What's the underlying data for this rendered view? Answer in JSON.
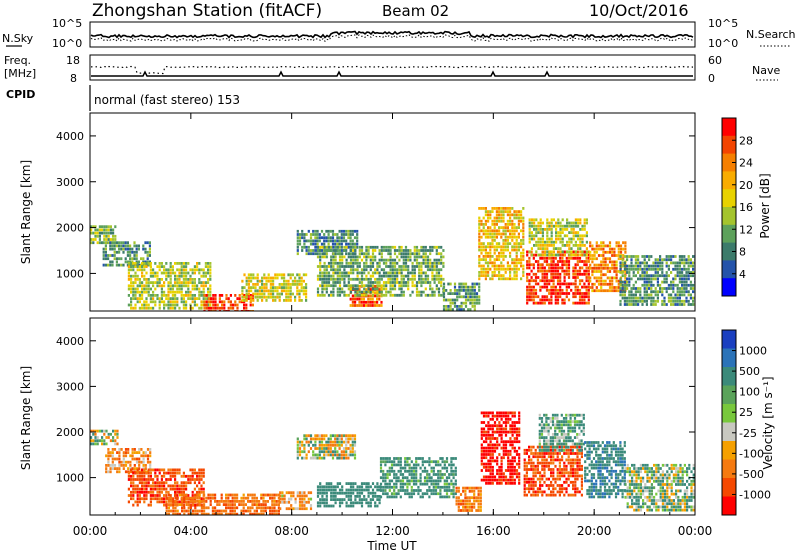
{
  "header": {
    "title": "Zhongshan Station (fitACF)",
    "beam": "Beam 02",
    "date": "10/Oct/2016"
  },
  "noise_panel": {
    "left_label": "N.Sky",
    "left_ticks": [
      "10^5",
      "10^0"
    ],
    "right_label": "N.Search",
    "right_ticks": [
      "10^5",
      "10^0"
    ]
  },
  "freq_panel": {
    "left_label_top": "Freq.",
    "left_label_unit": "[MHz]",
    "left_ticks": [
      "18",
      "8"
    ],
    "right_ticks": [
      "60",
      "0"
    ],
    "right_label": "Nave"
  },
  "cpid": {
    "label": "CPID",
    "text": "normal (fast stereo) 153"
  },
  "chart_data": [
    {
      "type": "heatmap",
      "name": "power",
      "ylabel": "Slant Range [km]",
      "yticks": [
        "4000",
        "3000",
        "2000",
        "1000"
      ],
      "ytick_values": [
        4000,
        3000,
        2000,
        1000
      ],
      "ylim": [
        180,
        4500
      ],
      "xlim": [
        0,
        24
      ],
      "colorbar_label": "Power [dB]",
      "colorbar_ticks": [
        "28",
        "24",
        "20",
        "16",
        "12",
        "8",
        "4"
      ],
      "colorbar_colors": [
        "#ff0000",
        "#f34400",
        "#f57f00",
        "#f9ac00",
        "#e8d200",
        "#a4c42d",
        "#5da15b",
        "#3c7b6b",
        "#2453aa",
        "#0000ff"
      ],
      "regions": [
        {
          "t0": 0.0,
          "t1": 1.0,
          "r0": 1700,
          "r1": 2050,
          "level": 12
        },
        {
          "t0": 0.5,
          "t1": 2.4,
          "r0": 1150,
          "r1": 1700,
          "level": 9
        },
        {
          "t0": 1.5,
          "t1": 4.8,
          "r0": 250,
          "r1": 1250,
          "level": 14
        },
        {
          "t0": 4.5,
          "t1": 6.5,
          "r0": 200,
          "r1": 550,
          "level": 26
        },
        {
          "t0": 6.0,
          "t1": 8.6,
          "r0": 400,
          "r1": 1000,
          "level": 16
        },
        {
          "t0": 8.2,
          "t1": 10.6,
          "r0": 1450,
          "r1": 1950,
          "level": 8
        },
        {
          "t0": 10.3,
          "t1": 11.6,
          "r0": 280,
          "r1": 750,
          "level": 24
        },
        {
          "t0": 9.0,
          "t1": 14.0,
          "r0": 500,
          "r1": 1600,
          "level": 11
        },
        {
          "t0": 14.0,
          "t1": 15.4,
          "r0": 200,
          "r1": 800,
          "level": 10
        },
        {
          "t0": 15.4,
          "t1": 17.2,
          "r0": 900,
          "r1": 2450,
          "level": 18
        },
        {
          "t0": 17.3,
          "t1": 19.8,
          "r0": 380,
          "r1": 1500,
          "level": 27
        },
        {
          "t0": 17.4,
          "t1": 19.7,
          "r0": 1400,
          "r1": 2200,
          "level": 15
        },
        {
          "t0": 19.8,
          "t1": 21.2,
          "r0": 600,
          "r1": 1700,
          "level": 22
        },
        {
          "t0": 21.0,
          "t1": 24.0,
          "r0": 300,
          "r1": 1400,
          "level": 9
        }
      ]
    },
    {
      "type": "heatmap",
      "name": "velocity",
      "ylabel": "Slant Range [km]",
      "yticks": [
        "4000",
        "3000",
        "2000",
        "1000"
      ],
      "ytick_values": [
        4000,
        3000,
        2000,
        1000
      ],
      "ylim": [
        180,
        4500
      ],
      "xlim": [
        0,
        24
      ],
      "colorbar_label": "Velocity [m s⁻¹]",
      "colorbar_ticks": [
        "1000",
        "500",
        "100",
        "25",
        "-25",
        "-100",
        "-500",
        "-1000"
      ],
      "colorbar_colors": [
        "#1a3fc0",
        "#2b73b8",
        "#3b8a7a",
        "#5aa35a",
        "#78c83c",
        "#c8c8c0",
        "#f5a000",
        "#f57a10",
        "#f54800",
        "#ff0000"
      ],
      "regions": [
        {
          "t0": 0.0,
          "t1": 1.1,
          "r0": 1700,
          "r1": 2050,
          "v": 0
        },
        {
          "t0": 0.6,
          "t1": 2.4,
          "r0": 1100,
          "r1": 1650,
          "v": -150
        },
        {
          "t0": 1.5,
          "t1": 4.5,
          "r0": 400,
          "r1": 1200,
          "v": -400
        },
        {
          "t0": 3.0,
          "t1": 7.5,
          "r0": 200,
          "r1": 650,
          "v": -250
        },
        {
          "t0": 7.5,
          "t1": 8.8,
          "r0": 300,
          "r1": 700,
          "v": -120
        },
        {
          "t0": 8.2,
          "t1": 10.5,
          "r0": 1450,
          "r1": 1950,
          "v": 0
        },
        {
          "t0": 9.0,
          "t1": 11.5,
          "r0": 350,
          "r1": 900,
          "v": 300
        },
        {
          "t0": 11.5,
          "t1": 14.5,
          "r0": 600,
          "r1": 1450,
          "v": 200
        },
        {
          "t0": 14.5,
          "t1": 15.5,
          "r0": 250,
          "r1": 800,
          "v": -200
        },
        {
          "t0": 15.5,
          "t1": 17.0,
          "r0": 900,
          "r1": 2450,
          "v": -600
        },
        {
          "t0": 17.2,
          "t1": 19.5,
          "r0": 600,
          "r1": 1700,
          "v": -400
        },
        {
          "t0": 17.8,
          "t1": 19.6,
          "r0": 1600,
          "r1": 2400,
          "v": 150
        },
        {
          "t0": 19.6,
          "t1": 21.2,
          "r0": 600,
          "r1": 1800,
          "v": 400
        },
        {
          "t0": 21.2,
          "t1": 24.0,
          "r0": 300,
          "r1": 1300,
          "v": 80
        }
      ]
    }
  ],
  "x_axis": {
    "ticks": [
      "00:00",
      "04:00",
      "08:00",
      "12:00",
      "16:00",
      "20:00",
      "00:00"
    ],
    "label": "Time UT"
  }
}
